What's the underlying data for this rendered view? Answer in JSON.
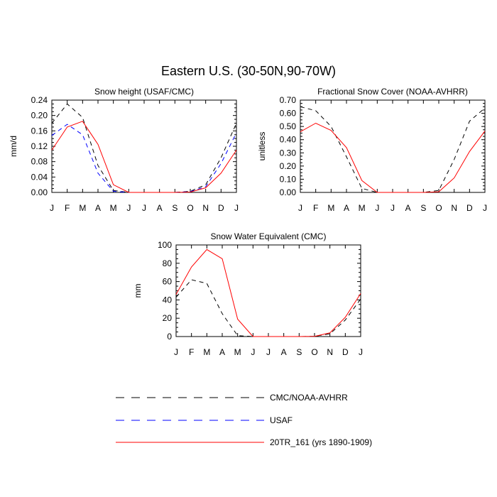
{
  "title": "Eastern U.S. (30-50N,90-70W)",
  "colors": {
    "cmc": "#000000",
    "usaf": "#0000ff",
    "tr": "#ff0000"
  },
  "legend": {
    "items": [
      {
        "label": "CMC/NOAA-AVHRR",
        "color": "#000000",
        "style": "dashed"
      },
      {
        "label": "USAF",
        "color": "#0000ff",
        "style": "dashed"
      },
      {
        "label": "20TR_161 (yrs 1890-1909)",
        "color": "#ff0000",
        "style": "solid"
      }
    ]
  },
  "chart_data": [
    {
      "type": "line",
      "title": "Snow height (USAF/CMC)",
      "ylabel": "mm/d",
      "categories": [
        "J",
        "F",
        "M",
        "A",
        "M",
        "J",
        "J",
        "A",
        "S",
        "O",
        "N",
        "D",
        "J"
      ],
      "ylim": [
        0,
        0.24
      ],
      "yticks": [
        "0.00",
        "0.04",
        "0.08",
        "0.12",
        "0.16",
        "0.20",
        "0.24"
      ],
      "series": [
        {
          "key": "cmc",
          "values": [
            0.18,
            0.23,
            0.195,
            0.07,
            0.005,
            0,
            0,
            0,
            0,
            0.003,
            0.02,
            0.09,
            0.18
          ]
        },
        {
          "key": "usaf",
          "values": [
            0.148,
            0.177,
            0.15,
            0.05,
            0.003,
            0,
            0,
            0,
            0,
            0.002,
            0.015,
            0.075,
            0.155
          ]
        },
        {
          "key": "tr",
          "values": [
            0.11,
            0.17,
            0.185,
            0.125,
            0.02,
            0,
            0,
            0,
            0,
            0.001,
            0.012,
            0.05,
            0.11
          ]
        }
      ]
    },
    {
      "type": "line",
      "title": "Fractional Snow Cover (NOAA-AVHRR)",
      "ylabel": "unitless",
      "categories": [
        "J",
        "F",
        "M",
        "A",
        "M",
        "J",
        "J",
        "A",
        "S",
        "O",
        "N",
        "D",
        "J"
      ],
      "ylim": [
        0,
        0.7
      ],
      "yticks": [
        "0.00",
        "0.10",
        "0.20",
        "0.30",
        "0.40",
        "0.50",
        "0.60",
        "0.70"
      ],
      "series": [
        {
          "key": "cmc",
          "values": [
            0.65,
            0.62,
            0.5,
            0.27,
            0.03,
            0,
            0,
            0,
            0,
            0.015,
            0.25,
            0.54,
            0.64
          ]
        },
        {
          "key": "tr",
          "values": [
            0.46,
            0.525,
            0.47,
            0.34,
            0.09,
            0,
            0,
            0,
            0,
            0.005,
            0.11,
            0.31,
            0.465
          ]
        }
      ]
    },
    {
      "type": "line",
      "title": "Snow Water Equivalent (CMC)",
      "ylabel": "mm",
      "categories": [
        "J",
        "F",
        "M",
        "A",
        "M",
        "J",
        "J",
        "A",
        "S",
        "O",
        "N",
        "D",
        "J"
      ],
      "ylim": [
        0,
        100
      ],
      "yticks": [
        "0",
        "20",
        "40",
        "60",
        "80",
        "100"
      ],
      "series": [
        {
          "key": "cmc",
          "values": [
            43,
            62,
            58,
            25,
            1,
            0,
            0,
            0,
            0,
            0.2,
            3,
            18,
            41
          ]
        },
        {
          "key": "tr",
          "values": [
            46,
            76,
            95,
            85,
            19,
            0,
            0,
            0,
            0,
            0.2,
            4,
            21,
            47
          ]
        }
      ]
    }
  ]
}
